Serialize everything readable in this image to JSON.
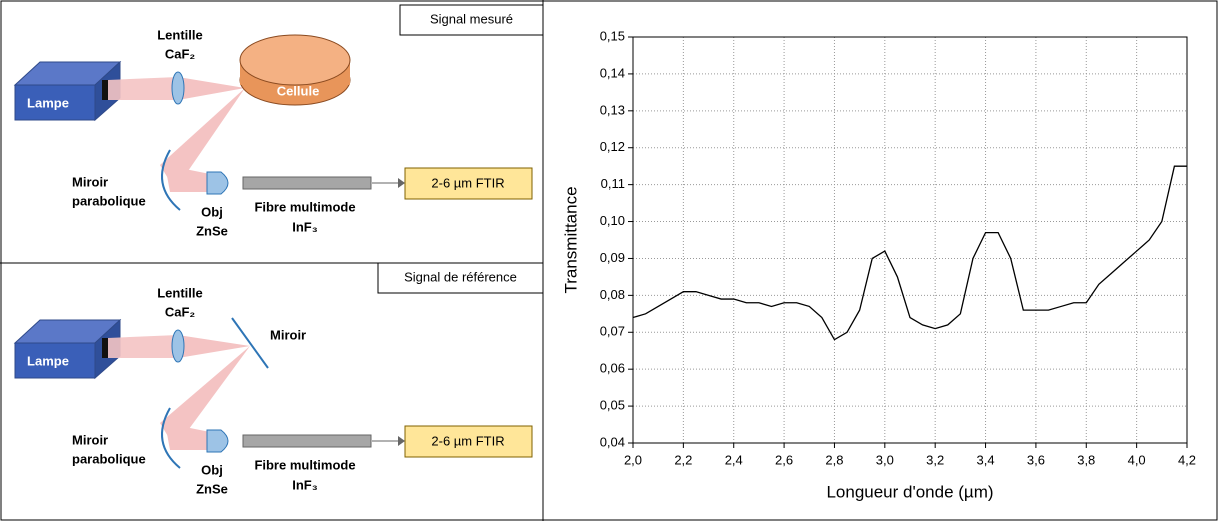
{
  "diagrams": [
    {
      "title": "Signal mesuré",
      "lamp": "Lampe",
      "lens": [
        "Lentille",
        "CaF₂"
      ],
      "cell": "Cellule",
      "mirror": [
        "Miroir",
        "parabolique"
      ],
      "objective": [
        "Obj",
        "ZnSe"
      ],
      "fibre": [
        "Fibre multimode",
        "InF₃"
      ],
      "detector": "2-6 µm FTIR"
    },
    {
      "title": "Signal de référence",
      "lamp": "Lampe",
      "lens": [
        "Lentille",
        "CaF₂"
      ],
      "flat_mirror": "Miroir",
      "mirror": [
        "Miroir",
        "parabolique"
      ],
      "objective": [
        "Obj",
        "ZnSe"
      ],
      "fibre": [
        "Fibre multimode",
        "InF₃"
      ],
      "detector": "2-6 µm FTIR"
    }
  ],
  "chart_data": {
    "type": "line",
    "x_label": "Longueur d'onde (µm)",
    "y_label": "Transmittance",
    "x": [
      2.0,
      2.05,
      2.1,
      2.15,
      2.2,
      2.25,
      2.3,
      2.35,
      2.4,
      2.45,
      2.5,
      2.55,
      2.6,
      2.65,
      2.7,
      2.75,
      2.8,
      2.85,
      2.9,
      2.95,
      3.0,
      3.05,
      3.1,
      3.15,
      3.2,
      3.25,
      3.3,
      3.35,
      3.4,
      3.45,
      3.5,
      3.55,
      3.6,
      3.65,
      3.7,
      3.75,
      3.8,
      3.85,
      3.9,
      3.95,
      4.0,
      4.05,
      4.1,
      4.15,
      4.2
    ],
    "series": [
      {
        "color": "#000000",
        "values": [
          0.074,
          0.075,
          0.077,
          0.079,
          0.081,
          0.081,
          0.08,
          0.079,
          0.079,
          0.078,
          0.078,
          0.077,
          0.078,
          0.078,
          0.077,
          0.074,
          0.068,
          0.07,
          0.076,
          0.09,
          0.092,
          0.085,
          0.074,
          0.072,
          0.071,
          0.072,
          0.075,
          0.09,
          0.097,
          0.097,
          0.09,
          0.076,
          0.076,
          0.076,
          0.077,
          0.078,
          0.078,
          0.083,
          0.086,
          0.089,
          0.092,
          0.095,
          0.1,
          0.115,
          0.115
        ]
      }
    ],
    "xlim": [
      2.0,
      4.2
    ],
    "ylim": [
      0.04,
      0.15
    ],
    "xticks": [
      {
        "value": 2.0,
        "label": "2,0"
      },
      {
        "value": 2.2,
        "label": "2,2"
      },
      {
        "value": 2.4,
        "label": "2,4"
      },
      {
        "value": 2.6,
        "label": "2,6"
      },
      {
        "value": 2.8,
        "label": "2,8"
      },
      {
        "value": 3.0,
        "label": "3,0"
      },
      {
        "value": 3.2,
        "label": "3,2"
      },
      {
        "value": 3.4,
        "label": "3,4"
      },
      {
        "value": 3.6,
        "label": "3,6"
      },
      {
        "value": 3.8,
        "label": "3,8"
      },
      {
        "value": 4.0,
        "label": "4,0"
      },
      {
        "value": 4.2,
        "label": "4,2"
      }
    ],
    "yticks": [
      {
        "value": 0.04,
        "label": "0,04"
      },
      {
        "value": 0.05,
        "label": "0,05"
      },
      {
        "value": 0.06,
        "label": "0,06"
      },
      {
        "value": 0.07,
        "label": "0,07"
      },
      {
        "value": 0.08,
        "label": "0,08"
      },
      {
        "value": 0.09,
        "label": "0,09"
      },
      {
        "value": 0.1,
        "label": "0,10"
      },
      {
        "value": 0.11,
        "label": "0,11"
      },
      {
        "value": 0.12,
        "label": "0,12"
      },
      {
        "value": 0.13,
        "label": "0,13"
      },
      {
        "value": 0.14,
        "label": "0,14"
      },
      {
        "value": 0.15,
        "label": "0,15"
      }
    ],
    "grid": true
  }
}
